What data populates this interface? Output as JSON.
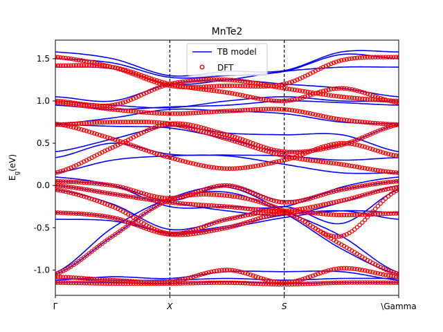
{
  "chart_data": {
    "type": "line",
    "title": "MnTe2",
    "ylabel": "E_g(eV)",
    "xlabel": "",
    "xlim": [
      0,
      3
    ],
    "ylim": [
      -1.3,
      1.72
    ],
    "x_ticks": [
      {
        "x": 0,
        "label": "Γ"
      },
      {
        "x": 1,
        "label": "X"
      },
      {
        "x": 2,
        "label": "S"
      },
      {
        "x": 3,
        "label": "\\Gamma"
      }
    ],
    "y_ticks": [
      -1.0,
      -0.5,
      0.0,
      0.5,
      1.0,
      1.5
    ],
    "vlines": [
      1,
      2
    ],
    "legend": {
      "position": "top-center",
      "entries": [
        {
          "label": "TB model",
          "style": "line",
          "color": "#0000ff"
        },
        {
          "label": "DFT",
          "style": "open-circle",
          "color": "#ff0000"
        }
      ]
    },
    "grid": false,
    "series": [
      {
        "name": "TB model",
        "color": "#0000ff",
        "bands": [
          {
            "x": [
              0,
              0.5,
              1,
              1.5,
              2,
              2.5,
              3
            ],
            "y": [
              -1.05,
              -0.6,
              -0.17,
              -0.08,
              -0.33,
              -0.75,
              -1.05
            ]
          },
          {
            "x": [
              0,
              0.5,
              1,
              1.5,
              2,
              2.5,
              3
            ],
            "y": [
              -1.03,
              -0.5,
              -0.15,
              -0.02,
              -0.3,
              -0.6,
              -1.03
            ]
          },
          {
            "x": [
              0,
              0.5,
              1,
              1.5,
              2,
              2.5,
              3
            ],
            "y": [
              -1.1,
              -1.12,
              -1.12,
              -1.1,
              -1.12,
              -1.1,
              -1.1
            ]
          },
          {
            "x": [
              0,
              0.5,
              1,
              1.5,
              2,
              2.5,
              3
            ],
            "y": [
              -1.15,
              -1.15,
              -1.16,
              -1.14,
              -1.16,
              -1.15,
              -1.15
            ]
          },
          {
            "x": [
              0,
              0.5,
              1,
              1.5,
              2,
              2.5,
              3
            ],
            "y": [
              -1.12,
              -1.08,
              -1.1,
              -1.02,
              -1.02,
              -1.02,
              -1.12
            ]
          },
          {
            "x": [
              0,
              0.5,
              1,
              1.5,
              2,
              2.5,
              3
            ],
            "y": [
              -0.4,
              -0.42,
              -0.55,
              -0.48,
              -0.35,
              -0.3,
              -0.4
            ]
          },
          {
            "x": [
              0,
              0.5,
              1,
              1.5,
              2,
              2.5,
              3
            ],
            "y": [
              -0.32,
              -0.38,
              -0.57,
              -0.5,
              -0.38,
              -0.3,
              -0.32
            ]
          },
          {
            "x": [
              0,
              0.5,
              1,
              1.5,
              2,
              2.5,
              3
            ],
            "y": [
              -0.05,
              -0.22,
              -0.52,
              -0.4,
              -0.25,
              -0.45,
              -0.05
            ]
          },
          {
            "x": [
              0,
              0.5,
              1,
              1.5,
              2,
              2.5,
              3
            ],
            "y": [
              0.0,
              -0.1,
              -0.2,
              -0.3,
              -0.35,
              -0.2,
              0.0
            ]
          },
          {
            "x": [
              0,
              0.5,
              1,
              1.5,
              2,
              2.5,
              3
            ],
            "y": [
              0.05,
              0.0,
              -0.18,
              0.0,
              -0.18,
              -0.05,
              0.05
            ]
          },
          {
            "x": [
              0,
              0.5,
              1,
              1.5,
              2,
              2.5,
              3
            ],
            "y": [
              0.1,
              0.0,
              -0.25,
              -0.25,
              -0.25,
              -0.02,
              0.1
            ]
          },
          {
            "x": [
              0,
              0.5,
              1,
              1.5,
              2,
              2.5,
              3
            ],
            "y": [
              0.15,
              0.3,
              0.35,
              0.35,
              0.25,
              0.15,
              0.15
            ]
          },
          {
            "x": [
              0,
              0.5,
              1,
              1.5,
              2,
              2.5,
              3
            ],
            "y": [
              0.33,
              0.5,
              0.37,
              0.36,
              0.35,
              0.3,
              0.33
            ]
          },
          {
            "x": [
              0,
              0.5,
              1,
              1.5,
              2,
              2.5,
              3
            ],
            "y": [
              0.4,
              0.55,
              0.7,
              0.62,
              0.6,
              0.6,
              0.4
            ]
          },
          {
            "x": [
              0,
              0.5,
              1,
              1.5,
              2,
              2.5,
              3
            ],
            "y": [
              0.72,
              0.7,
              0.68,
              0.55,
              0.4,
              0.48,
              0.72
            ]
          },
          {
            "x": [
              0,
              0.5,
              1,
              1.5,
              2,
              2.5,
              3
            ],
            "y": [
              0.73,
              0.8,
              0.9,
              0.88,
              0.85,
              0.75,
              0.73
            ]
          },
          {
            "x": [
              0,
              0.5,
              1,
              1.5,
              2,
              2.5,
              3
            ],
            "y": [
              0.95,
              0.9,
              0.93,
              0.95,
              1.0,
              0.98,
              0.95
            ]
          },
          {
            "x": [
              0,
              0.5,
              1,
              1.5,
              2,
              2.5,
              3
            ],
            "y": [
              1.0,
              0.95,
              0.92,
              1.0,
              1.05,
              1.0,
              1.0
            ]
          },
          {
            "x": [
              0,
              0.5,
              1,
              1.5,
              2,
              2.5,
              3
            ],
            "y": [
              1.05,
              1.0,
              1.2,
              1.25,
              1.2,
              1.15,
              1.05
            ]
          },
          {
            "x": [
              0,
              0.5,
              1,
              1.5,
              2,
              2.5,
              3
            ],
            "y": [
              1.4,
              1.38,
              1.2,
              1.25,
              1.35,
              1.4,
              1.4
            ]
          },
          {
            "x": [
              0,
              0.5,
              1,
              1.5,
              2,
              2.5,
              3
            ],
            "y": [
              1.5,
              1.45,
              1.28,
              1.3,
              1.35,
              1.55,
              1.5
            ]
          },
          {
            "x": [
              0,
              0.5,
              1,
              1.5,
              2,
              2.5,
              3
            ],
            "y": [
              1.58,
              1.5,
              1.3,
              1.35,
              1.36,
              1.58,
              1.58
            ]
          }
        ]
      },
      {
        "name": "DFT",
        "color": "#ff0000",
        "bands": [
          {
            "x": [
              0,
              0.5,
              1,
              1.5,
              2,
              2.5,
              3
            ],
            "y": [
              -1.05,
              -0.6,
              -0.17,
              -0.12,
              -0.3,
              -0.7,
              -1.05
            ]
          },
          {
            "x": [
              0,
              0.5,
              1,
              1.5,
              2,
              2.5,
              3
            ],
            "y": [
              -1.08,
              -1.12,
              -1.14,
              -1.0,
              -1.15,
              -0.98,
              -1.08
            ]
          },
          {
            "x": [
              0,
              0.5,
              1,
              1.5,
              2,
              2.5,
              3
            ],
            "y": [
              -1.15,
              -1.16,
              -1.16,
              -1.15,
              -1.17,
              -1.15,
              -1.15
            ]
          },
          {
            "x": [
              0,
              0.5,
              1,
              1.5,
              2,
              2.5,
              3
            ],
            "y": [
              -0.32,
              -0.38,
              -0.58,
              -0.5,
              -0.32,
              -0.35,
              -0.33
            ]
          },
          {
            "x": [
              0,
              0.5,
              1,
              1.5,
              2,
              2.5,
              3
            ],
            "y": [
              -0.05,
              -0.25,
              -0.57,
              -0.4,
              -0.32,
              -0.6,
              -0.05
            ]
          },
          {
            "x": [
              0,
              0.5,
              1,
              1.5,
              2,
              2.5,
              3
            ],
            "y": [
              0.0,
              -0.1,
              -0.2,
              -0.25,
              -0.3,
              -0.18,
              -0.02
            ]
          },
          {
            "x": [
              0,
              0.5,
              1,
              1.5,
              2,
              2.5,
              3
            ],
            "y": [
              0.05,
              0.0,
              -0.15,
              0.0,
              -0.2,
              -0.05,
              0.05
            ]
          },
          {
            "x": [
              0,
              0.5,
              1,
              1.5,
              2,
              2.5,
              3
            ],
            "y": [
              0.15,
              0.45,
              0.73,
              0.6,
              0.4,
              0.48,
              0.72
            ]
          },
          {
            "x": [
              0,
              0.5,
              1,
              1.5,
              2,
              2.5,
              3
            ],
            "y": [
              0.73,
              0.55,
              0.33,
              0.2,
              0.3,
              0.5,
              0.35
            ]
          },
          {
            "x": [
              0,
              0.5,
              1,
              1.5,
              2,
              2.5,
              3
            ],
            "y": [
              0.72,
              0.75,
              0.73,
              0.55,
              0.35,
              0.25,
              0.15
            ]
          },
          {
            "x": [
              0,
              0.5,
              1,
              1.5,
              2,
              2.5,
              3
            ],
            "y": [
              0.98,
              0.9,
              0.85,
              0.88,
              0.9,
              0.78,
              0.72
            ]
          },
          {
            "x": [
              0,
              0.5,
              1,
              1.5,
              2,
              2.5,
              3
            ],
            "y": [
              1.0,
              0.95,
              1.2,
              1.25,
              1.15,
              1.05,
              1.0
            ]
          },
          {
            "x": [
              0,
              0.5,
              1,
              1.5,
              2,
              2.5,
              3
            ],
            "y": [
              1.42,
              1.4,
              1.2,
              1.1,
              1.0,
              1.15,
              0.98
            ]
          },
          {
            "x": [
              0,
              0.5,
              1,
              1.5,
              2,
              2.5,
              3
            ],
            "y": [
              1.52,
              1.4,
              1.18,
              1.18,
              1.2,
              1.48,
              1.52
            ]
          }
        ]
      }
    ]
  }
}
